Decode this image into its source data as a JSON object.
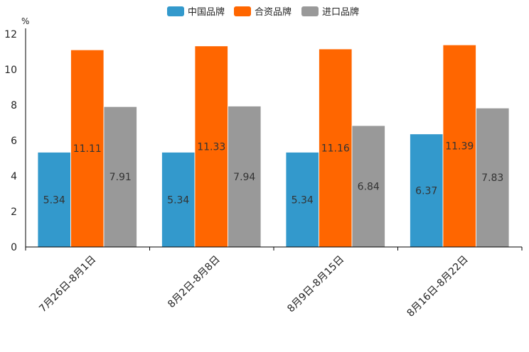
{
  "chart_data": {
    "type": "bar",
    "title": "",
    "xlabel": "",
    "ylabel": "%",
    "ylim": [
      0,
      12
    ],
    "yticks": [
      0,
      2,
      4,
      6,
      8,
      10,
      12
    ],
    "grid": false,
    "legend_position": "top-center",
    "categories": [
      "7月26日-8月1日",
      "8月2日-8月8日",
      "8月9日-8月15日",
      "8月16日-8月22日"
    ],
    "series": [
      {
        "name": "中国品牌",
        "color": "#3399cc",
        "values": [
          5.34,
          5.34,
          5.34,
          6.37
        ],
        "labels": [
          "5.34",
          "5.34",
          "5.34",
          "6.37"
        ]
      },
      {
        "name": "合资品牌",
        "color": "#ff6600",
        "values": [
          11.11,
          11.33,
          11.16,
          11.39
        ],
        "labels": [
          "11.11",
          "11.33",
          "11.16",
          "11.39"
        ]
      },
      {
        "name": "进口品牌",
        "color": "#999999",
        "values": [
          7.91,
          7.94,
          6.84,
          7.83
        ],
        "labels": [
          "7.91",
          "7.94",
          "6.84",
          "7.83"
        ]
      }
    ]
  }
}
